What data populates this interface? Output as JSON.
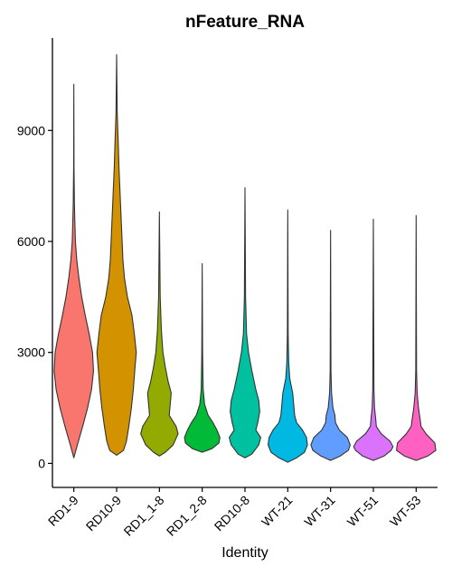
{
  "chart_data": {
    "type": "violin",
    "title": "nFeature_RNA",
    "xlabel": "Identity",
    "ylabel": "",
    "ylim": [
      -650,
      11500
    ],
    "yticks": [
      0,
      3000,
      6000,
      9000
    ],
    "ytick_labels": [
      "0",
      "3000",
      "6000",
      "9000"
    ],
    "grid": false,
    "legend": "none",
    "categories": [
      "RD1-9",
      "RD10-9",
      "RD1_1-8",
      "RD1_2-8",
      "RD10-8",
      "WT-21",
      "WT-31",
      "WT-51",
      "WT-53"
    ],
    "colors": [
      "#F8766D",
      "#D39200",
      "#93AA00",
      "#00BA38",
      "#00C19F",
      "#00B9E3",
      "#619CFF",
      "#DB72FB",
      "#FF61C3"
    ],
    "series": [
      {
        "min": 150,
        "max": 10250,
        "density": [
          [
            150,
            0
          ],
          [
            500,
            0.18
          ],
          [
            1000,
            0.45
          ],
          [
            1500,
            0.7
          ],
          [
            2000,
            0.9
          ],
          [
            2500,
            1.0
          ],
          [
            3000,
            0.95
          ],
          [
            3500,
            0.78
          ],
          [
            4000,
            0.58
          ],
          [
            4500,
            0.4
          ],
          [
            5000,
            0.26
          ],
          [
            5500,
            0.15
          ],
          [
            6000,
            0.08
          ],
          [
            7000,
            0.03
          ],
          [
            8000,
            0.01
          ],
          [
            10250,
            0
          ]
        ]
      },
      {
        "min": 220,
        "max": 11050,
        "density": [
          [
            220,
            0
          ],
          [
            350,
            0.35
          ],
          [
            600,
            0.5
          ],
          [
            1000,
            0.62
          ],
          [
            1500,
            0.75
          ],
          [
            2000,
            0.85
          ],
          [
            2500,
            0.92
          ],
          [
            3000,
            1.0
          ],
          [
            3500,
            0.9
          ],
          [
            4000,
            0.78
          ],
          [
            4500,
            0.55
          ],
          [
            5000,
            0.4
          ],
          [
            5500,
            0.32
          ],
          [
            6000,
            0.28
          ],
          [
            7000,
            0.2
          ],
          [
            8000,
            0.12
          ],
          [
            8700,
            0.08
          ],
          [
            9500,
            0.03
          ],
          [
            11050,
            0
          ]
        ]
      },
      {
        "min": 200,
        "max": 6800,
        "density": [
          [
            200,
            0
          ],
          [
            300,
            0.3
          ],
          [
            500,
            0.7
          ],
          [
            800,
            0.95
          ],
          [
            1000,
            0.85
          ],
          [
            1300,
            0.5
          ],
          [
            1600,
            0.55
          ],
          [
            1900,
            0.6
          ],
          [
            2200,
            0.45
          ],
          [
            2600,
            0.3
          ],
          [
            3000,
            0.18
          ],
          [
            3600,
            0.1
          ],
          [
            4500,
            0.04
          ],
          [
            6800,
            0
          ]
        ]
      },
      {
        "min": 300,
        "max": 5400,
        "density": [
          [
            300,
            0
          ],
          [
            400,
            0.5
          ],
          [
            550,
            0.85
          ],
          [
            700,
            0.9
          ],
          [
            900,
            0.75
          ],
          [
            1100,
            0.55
          ],
          [
            1300,
            0.3
          ],
          [
            1600,
            0.12
          ],
          [
            2000,
            0.05
          ],
          [
            3000,
            0.02
          ],
          [
            5400,
            0
          ]
        ]
      },
      {
        "min": 150,
        "max": 7450,
        "density": [
          [
            150,
            0
          ],
          [
            250,
            0.35
          ],
          [
            500,
            0.7
          ],
          [
            700,
            0.8
          ],
          [
            900,
            0.55
          ],
          [
            1100,
            0.65
          ],
          [
            1400,
            0.75
          ],
          [
            1700,
            0.7
          ],
          [
            2000,
            0.55
          ],
          [
            2500,
            0.35
          ],
          [
            3000,
            0.18
          ],
          [
            3500,
            0.08
          ],
          [
            4500,
            0.03
          ],
          [
            7450,
            0
          ]
        ]
      },
      {
        "min": 30,
        "max": 6850,
        "density": [
          [
            30,
            0
          ],
          [
            150,
            0.45
          ],
          [
            300,
            0.85
          ],
          [
            500,
            1.0
          ],
          [
            700,
            0.95
          ],
          [
            900,
            0.75
          ],
          [
            1100,
            0.45
          ],
          [
            1300,
            0.35
          ],
          [
            1600,
            0.3
          ],
          [
            1900,
            0.25
          ],
          [
            2300,
            0.1
          ],
          [
            2700,
            0.05
          ],
          [
            3500,
            0.02
          ],
          [
            6850,
            0
          ]
        ]
      },
      {
        "min": 80,
        "max": 6300,
        "density": [
          [
            80,
            0
          ],
          [
            200,
            0.5
          ],
          [
            350,
            0.9
          ],
          [
            500,
            1.0
          ],
          [
            700,
            0.85
          ],
          [
            900,
            0.45
          ],
          [
            1100,
            0.25
          ],
          [
            1300,
            0.22
          ],
          [
            1500,
            0.12
          ],
          [
            1900,
            0.05
          ],
          [
            2500,
            0.02
          ],
          [
            6300,
            0
          ]
        ]
      },
      {
        "min": 80,
        "max": 6600,
        "density": [
          [
            80,
            0
          ],
          [
            200,
            0.55
          ],
          [
            350,
            0.9
          ],
          [
            450,
            1.0
          ],
          [
            600,
            0.85
          ],
          [
            800,
            0.4
          ],
          [
            1000,
            0.15
          ],
          [
            1200,
            0.12
          ],
          [
            1500,
            0.06
          ],
          [
            2000,
            0.03
          ],
          [
            6600,
            0
          ]
        ]
      },
      {
        "min": 80,
        "max": 6700,
        "density": [
          [
            80,
            0
          ],
          [
            200,
            0.6
          ],
          [
            350,
            1.0
          ],
          [
            550,
            0.95
          ],
          [
            800,
            0.5
          ],
          [
            1000,
            0.25
          ],
          [
            1200,
            0.2
          ],
          [
            1500,
            0.12
          ],
          [
            1900,
            0.05
          ],
          [
            2500,
            0.02
          ],
          [
            6700,
            0
          ]
        ]
      }
    ]
  }
}
